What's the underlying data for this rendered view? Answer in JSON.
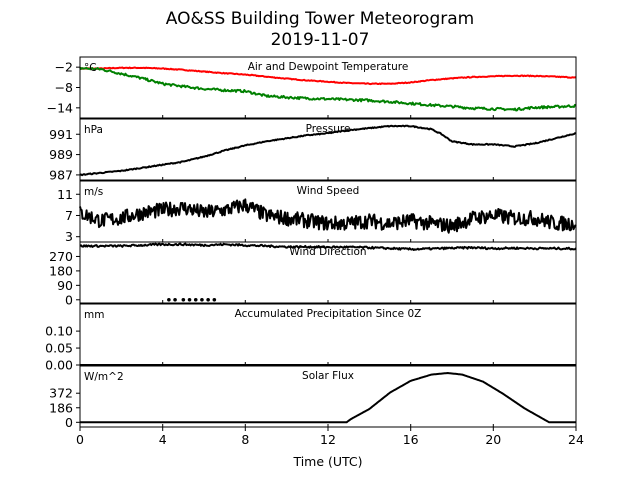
{
  "figure": {
    "title_line1": "AO&SS Building Tower Meteorogram",
    "title_line2": "2019-11-07",
    "xlabel": "Time (UTC)",
    "xticks": [
      "0",
      "4",
      "8",
      "12",
      "16",
      "20",
      "24"
    ]
  },
  "panels": [
    {
      "id": "temperature",
      "title": "Air and Dewpoint Temperature",
      "unit": "°C",
      "yticks": [
        "−2",
        "−8",
        "−14"
      ]
    },
    {
      "id": "pressure",
      "title": "Pressure",
      "unit": "hPa",
      "yticks": [
        "991",
        "989",
        "987"
      ]
    },
    {
      "id": "wind_speed",
      "title": "Wind Speed",
      "unit": "m/s",
      "yticks": [
        "11",
        "7",
        "3"
      ]
    },
    {
      "id": "wind_direction",
      "title": "Wind Direction",
      "unit": "",
      "yticks": [
        "270",
        "180",
        "90",
        "0"
      ]
    },
    {
      "id": "precipitation",
      "title": "Accumulated Precipitation Since 0Z",
      "unit": "mm",
      "yticks": [
        "0.10",
        "0.05",
        "0.00"
      ]
    },
    {
      "id": "solar",
      "title": "Solar Flux",
      "unit": "W/m^2",
      "yticks": [
        "372",
        "186",
        "0"
      ]
    }
  ],
  "colors": {
    "air_temp": "#ff0000",
    "dewpoint": "#008000",
    "line": "#000000"
  },
  "chart_data": [
    {
      "type": "line",
      "title": "Air and Dewpoint Temperature",
      "ylabel": "°C",
      "xlim": [
        0,
        24
      ],
      "ylim": [
        -17,
        1
      ],
      "yticks": [
        -2,
        -8,
        -14
      ],
      "series": [
        {
          "key": "air",
          "color": "#ff0000",
          "x": [
            0,
            1,
            2,
            3,
            4,
            5,
            6,
            7,
            8,
            9,
            10,
            11,
            12,
            13,
            14,
            15,
            16,
            17,
            18,
            19,
            20,
            21,
            22,
            23,
            24
          ],
          "values": [
            -2.4,
            -2.4,
            -2.2,
            -2.2,
            -2.4,
            -2.8,
            -3.3,
            -3.8,
            -4.2,
            -4.8,
            -5.4,
            -5.9,
            -6.3,
            -6.7,
            -6.9,
            -6.9,
            -6.5,
            -5.8,
            -5.3,
            -4.9,
            -4.7,
            -4.5,
            -4.6,
            -4.8,
            -5.1
          ]
        },
        {
          "key": "dew",
          "color": "#008000",
          "x": [
            0,
            1,
            2,
            3,
            4,
            5,
            6,
            7,
            8,
            9,
            10,
            11,
            12,
            13,
            14,
            15,
            16,
            17,
            18,
            19,
            20,
            21,
            22,
            23,
            24
          ],
          "values": [
            -2.3,
            -2.6,
            -3.9,
            -5.3,
            -6.9,
            -7.7,
            -8.4,
            -8.8,
            -9.1,
            -10.5,
            -10.9,
            -11.2,
            -11.4,
            -11.6,
            -11.8,
            -12.2,
            -12.7,
            -13.2,
            -13.6,
            -14.1,
            -14.3,
            -14.5,
            -13.9,
            -13.7,
            -13.4
          ]
        }
      ]
    },
    {
      "type": "line",
      "title": "Pressure",
      "ylabel": "hPa",
      "xlim": [
        0,
        24
      ],
      "ylim": [
        986.5,
        992.5
      ],
      "yticks": [
        991,
        989,
        987
      ],
      "series": [
        {
          "key": "pressure",
          "color": "#000000",
          "x": [
            0,
            1,
            2,
            3,
            4,
            5,
            6,
            7,
            8,
            9,
            10,
            11,
            12,
            13,
            14,
            15,
            16,
            17,
            17.5,
            18,
            19,
            20,
            21,
            22,
            23,
            24
          ],
          "values": [
            987.0,
            987.2,
            987.4,
            987.7,
            988.0,
            988.3,
            988.8,
            989.4,
            989.9,
            990.3,
            990.6,
            990.9,
            991.1,
            991.4,
            991.6,
            991.8,
            991.8,
            991.5,
            991.0,
            990.3,
            990.0,
            990.0,
            989.8,
            990.1,
            990.6,
            991.1
          ]
        }
      ]
    },
    {
      "type": "line",
      "title": "Wind Speed",
      "ylabel": "m/s",
      "xlim": [
        0,
        24
      ],
      "ylim": [
        2,
        13.5
      ],
      "yticks": [
        11,
        7,
        3
      ],
      "series": [
        {
          "key": "wind_speed",
          "color": "#000000",
          "x": [
            0,
            1,
            2,
            3,
            4,
            5,
            6,
            7,
            8,
            9,
            10,
            11,
            12,
            13,
            14,
            15,
            16,
            17,
            18,
            19,
            20,
            21,
            22,
            23,
            24
          ],
          "values": [
            7.5,
            6.0,
            6.5,
            7.5,
            8.0,
            8.5,
            7.5,
            8.0,
            9.0,
            7.0,
            6.5,
            6.0,
            5.5,
            5.5,
            6.0,
            5.5,
            6.0,
            5.5,
            5.0,
            6.5,
            7.0,
            6.5,
            6.5,
            5.5,
            5.5
          ]
        }
      ]
    },
    {
      "type": "scatter",
      "title": "Wind Direction",
      "xlim": [
        0,
        24
      ],
      "ylim": [
        -20,
        360
      ],
      "yticks": [
        270,
        180,
        90,
        0
      ],
      "series": [
        {
          "key": "wind_dir",
          "color": "#000000",
          "x": [
            0,
            1,
            2,
            3,
            4,
            5,
            6,
            7,
            8,
            9,
            10,
            11,
            12,
            13,
            14,
            15,
            16,
            17,
            18,
            19,
            20,
            21,
            22,
            23,
            24
          ],
          "values": [
            335,
            335,
            335,
            340,
            345,
            345,
            340,
            345,
            340,
            335,
            330,
            330,
            328,
            328,
            325,
            320,
            315,
            318,
            322,
            325,
            320,
            322,
            320,
            320,
            318
          ],
          "zero_x": [
            4.3,
            4.6,
            5.0,
            5.3,
            5.6,
            5.9,
            6.2,
            6.5
          ]
        }
      ]
    },
    {
      "type": "line",
      "title": "Accumulated Precipitation Since 0Z",
      "ylabel": "mm",
      "xlim": [
        0,
        24
      ],
      "ylim": [
        0,
        0.18
      ],
      "yticks": [
        0.1,
        0.05,
        0.0
      ],
      "series": [
        {
          "key": "precip",
          "color": "#000000",
          "x": [
            0,
            24
          ],
          "values": [
            0.0,
            0.0
          ]
        }
      ]
    },
    {
      "type": "line",
      "title": "Solar Flux",
      "ylabel": "W/m^2",
      "xlim": [
        0,
        24
      ],
      "ylim": [
        -60,
        720
      ],
      "yticks": [
        372,
        186,
        0
      ],
      "series": [
        {
          "key": "solar",
          "color": "#000000",
          "x": [
            0,
            12.9,
            13.1,
            14,
            15,
            16,
            17,
            17.8,
            18.5,
            19.5,
            20.5,
            21.5,
            22.7,
            24
          ],
          "values": [
            0,
            0,
            40,
            170,
            380,
            530,
            610,
            630,
            610,
            520,
            360,
            180,
            0,
            0
          ]
        }
      ]
    }
  ]
}
